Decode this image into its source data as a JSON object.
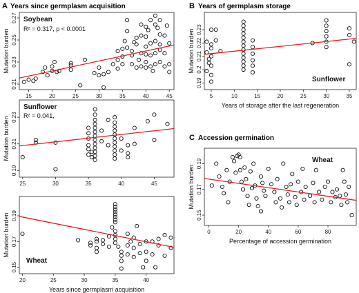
{
  "panel_headings": {
    "A": {
      "letter": "A",
      "title": "Years since germplasm acquisition"
    },
    "B": {
      "letter": "B",
      "title": "Years of germplasm storage"
    },
    "C": {
      "letter": "C",
      "title": "Accession germination"
    }
  },
  "fit_color": "#e41a1c",
  "chart_data": [
    {
      "id": "soybean",
      "type": "scatter",
      "label": "Soybean",
      "stat_r2": "R² = 0.317, p < 0.0001",
      "xlabel": "",
      "ylabel": "Mutation burden",
      "xlim": [
        13,
        46
      ],
      "ylim": [
        0.205,
        0.275
      ],
      "xticks": [
        15,
        20,
        25,
        30,
        35,
        40,
        45
      ],
      "yticks": [
        0.21,
        0.23,
        0.25,
        0.27
      ],
      "fit": {
        "x": [
          13,
          46
        ],
        "y": [
          0.2155,
          0.2455
        ]
      },
      "points": [
        [
          14,
          0.212
        ],
        [
          15,
          0.214
        ],
        [
          16,
          0.213
        ],
        [
          16.5,
          0.215
        ],
        [
          18,
          0.221
        ],
        [
          18.5,
          0.225
        ],
        [
          19,
          0.218
        ],
        [
          20,
          0.222
        ],
        [
          20,
          0.226
        ],
        [
          20.5,
          0.23
        ],
        [
          21,
          0.221
        ],
        [
          21.5,
          0.222
        ],
        [
          24,
          0.223
        ],
        [
          24,
          0.227
        ],
        [
          24,
          0.229
        ],
        [
          26,
          0.209
        ],
        [
          27,
          0.232
        ],
        [
          29,
          0.22
        ],
        [
          30,
          0.225
        ],
        [
          30,
          0.218
        ],
        [
          31,
          0.207
        ],
        [
          31,
          0.219
        ],
        [
          32,
          0.221
        ],
        [
          33,
          0.228
        ],
        [
          34,
          0.232
        ],
        [
          34,
          0.24
        ],
        [
          34,
          0.224
        ],
        [
          35,
          0.235
        ],
        [
          35,
          0.242
        ],
        [
          35,
          0.228
        ],
        [
          35.5,
          0.249
        ],
        [
          36,
          0.268
        ],
        [
          36,
          0.258
        ],
        [
          36,
          0.243
        ],
        [
          37,
          0.236
        ],
        [
          37,
          0.24
        ],
        [
          37,
          0.228
        ],
        [
          37.5,
          0.248
        ],
        [
          38,
          0.225
        ],
        [
          38,
          0.246
        ],
        [
          38,
          0.252
        ],
        [
          38.5,
          0.232
        ],
        [
          39,
          0.264
        ],
        [
          39,
          0.254
        ],
        [
          39,
          0.238
        ],
        [
          39,
          0.226
        ],
        [
          40,
          0.262
        ],
        [
          40,
          0.253
        ],
        [
          40,
          0.244
        ],
        [
          40,
          0.237
        ],
        [
          40,
          0.23
        ],
        [
          40,
          0.225
        ],
        [
          40.5,
          0.259
        ],
        [
          41,
          0.268
        ],
        [
          41,
          0.247
        ],
        [
          41,
          0.236
        ],
        [
          41,
          0.226
        ],
        [
          41.5,
          0.222
        ],
        [
          42,
          0.272
        ],
        [
          42,
          0.264
        ],
        [
          42,
          0.249
        ],
        [
          42,
          0.238
        ],
        [
          42,
          0.228
        ],
        [
          42.5,
          0.261
        ],
        [
          43,
          0.268
        ],
        [
          43,
          0.255
        ],
        [
          43,
          0.246
        ],
        [
          43,
          0.241
        ],
        [
          43,
          0.23
        ],
        [
          44,
          0.254
        ],
        [
          44,
          0.238
        ],
        [
          44,
          0.226
        ],
        [
          44.5,
          0.263
        ],
        [
          45,
          0.228
        ],
        [
          45,
          0.247
        ],
        [
          45,
          0.221
        ]
      ]
    },
    {
      "id": "sunflower_a",
      "type": "scatter",
      "label": "Sunflower",
      "stat_r2": "R² = 0.041,",
      "xlabel": "",
      "ylabel": "Mutation burden",
      "xlim": [
        24.5,
        48
      ],
      "ylim": [
        0.185,
        0.243
      ],
      "xticks": [
        25,
        30,
        35,
        40,
        45
      ],
      "yticks": [
        0.19,
        0.21,
        0.23
      ],
      "fit": {
        "x": [
          24.5,
          48
        ],
        "y": [
          0.2085,
          0.2215
        ]
      },
      "points": [
        [
          25,
          0.2
        ],
        [
          27,
          0.211
        ],
        [
          27,
          0.213
        ],
        [
          30,
          0.211
        ],
        [
          30,
          0.191
        ],
        [
          35,
          0.202
        ],
        [
          35,
          0.206
        ],
        [
          35,
          0.209
        ],
        [
          35,
          0.214
        ],
        [
          35,
          0.218
        ],
        [
          35,
          0.222
        ],
        [
          35.5,
          0.2
        ],
        [
          35.5,
          0.204
        ],
        [
          36,
          0.236
        ],
        [
          36,
          0.232
        ],
        [
          36,
          0.228
        ],
        [
          36,
          0.225
        ],
        [
          36,
          0.222
        ],
        [
          36,
          0.219
        ],
        [
          36,
          0.216
        ],
        [
          36,
          0.213
        ],
        [
          36,
          0.21
        ],
        [
          36,
          0.207
        ],
        [
          36,
          0.204
        ],
        [
          36,
          0.201
        ],
        [
          36,
          0.198
        ],
        [
          37,
          0.212
        ],
        [
          37,
          0.22
        ],
        [
          38,
          0.228
        ],
        [
          38,
          0.209
        ],
        [
          39,
          0.23
        ],
        [
          39,
          0.226
        ],
        [
          39,
          0.223
        ],
        [
          39,
          0.22
        ],
        [
          39,
          0.217
        ],
        [
          39,
          0.214
        ],
        [
          39,
          0.211
        ],
        [
          39,
          0.208
        ],
        [
          39,
          0.205
        ],
        [
          39,
          0.202
        ],
        [
          39,
          0.199
        ],
        [
          40,
          0.214
        ],
        [
          40,
          0.205
        ],
        [
          41,
          0.209
        ],
        [
          41,
          0.203
        ],
        [
          41,
          0.2
        ],
        [
          42,
          0.222
        ],
        [
          42,
          0.21
        ],
        [
          44,
          0.227
        ],
        [
          45,
          0.232
        ],
        [
          45,
          0.213
        ],
        [
          47,
          0.225
        ]
      ]
    },
    {
      "id": "wheat_a",
      "type": "scatter",
      "label": "Wheat",
      "xlabel": "Years since germplasm acquisition",
      "ylabel": "Mutation burden",
      "xlim": [
        19.5,
        44.5
      ],
      "ylim": [
        0.145,
        0.205
      ],
      "xticks": [
        20,
        25,
        30,
        35,
        40
      ],
      "yticks": [
        0.15,
        0.17,
        0.19
      ],
      "fit": {
        "x": [
          19.5,
          44.5
        ],
        "y": [
          0.1895,
          0.1655
        ]
      },
      "points": [
        [
          20,
          0.176
        ],
        [
          29,
          0.171
        ],
        [
          31,
          0.167
        ],
        [
          31,
          0.169
        ],
        [
          32,
          0.17
        ],
        [
          32,
          0.165
        ],
        [
          32,
          0.172
        ],
        [
          32,
          0.162
        ],
        [
          33,
          0.168
        ],
        [
          33,
          0.171
        ],
        [
          34,
          0.174
        ],
        [
          34,
          0.166
        ],
        [
          34.5,
          0.181
        ],
        [
          35,
          0.199
        ],
        [
          35,
          0.197
        ],
        [
          35,
          0.195
        ],
        [
          35,
          0.193
        ],
        [
          35,
          0.191
        ],
        [
          35,
          0.189
        ],
        [
          35,
          0.187
        ],
        [
          35,
          0.185
        ],
        [
          35,
          0.178
        ],
        [
          35,
          0.175
        ],
        [
          35,
          0.172
        ],
        [
          35,
          0.169
        ],
        [
          35.5,
          0.166
        ],
        [
          36,
          0.162
        ],
        [
          36,
          0.159
        ],
        [
          36,
          0.155
        ],
        [
          36,
          0.149
        ],
        [
          37,
          0.176
        ],
        [
          37,
          0.167
        ],
        [
          37,
          0.16
        ],
        [
          37.5,
          0.17
        ],
        [
          38,
          0.158
        ],
        [
          38,
          0.165
        ],
        [
          38,
          0.173
        ],
        [
          38.5,
          0.182
        ],
        [
          39,
          0.161
        ],
        [
          39,
          0.168
        ],
        [
          39.5,
          0.15
        ],
        [
          40,
          0.17
        ],
        [
          40,
          0.162
        ],
        [
          40,
          0.155
        ],
        [
          41,
          0.17
        ],
        [
          41,
          0.16
        ],
        [
          41.5,
          0.15
        ],
        [
          42,
          0.167
        ],
        [
          42,
          0.172
        ],
        [
          43,
          0.175
        ],
        [
          43,
          0.159
        ],
        [
          44,
          0.173
        ],
        [
          44,
          0.165
        ]
      ]
    },
    {
      "id": "sunflower_b",
      "type": "scatter",
      "label": "Sunflower",
      "xlabel": "Years of storage after the last regeneration",
      "ylabel": "Mutation burden",
      "xlim": [
        3.5,
        36.5
      ],
      "ylim": [
        0.185,
        0.243
      ],
      "xticks": [
        5,
        10,
        15,
        20,
        25,
        30,
        35
      ],
      "yticks": [
        0.19,
        0.2,
        0.21,
        0.22,
        0.23
      ],
      "fit": {
        "x": [
          3.5,
          36.5
        ],
        "y": [
          0.2115,
          0.2235
        ]
      },
      "points": [
        [
          4,
          0.199
        ],
        [
          4,
          0.213
        ],
        [
          4,
          0.221
        ],
        [
          4.5,
          0.208
        ],
        [
          4.5,
          0.205
        ],
        [
          5,
          0.23
        ],
        [
          5,
          0.219
        ],
        [
          5,
          0.216
        ],
        [
          5,
          0.21
        ],
        [
          5,
          0.203
        ],
        [
          5,
          0.196
        ],
        [
          5,
          0.191
        ],
        [
          6,
          0.23
        ],
        [
          6,
          0.222
        ],
        [
          7,
          0.214
        ],
        [
          12,
          0.236
        ],
        [
          12,
          0.233
        ],
        [
          12,
          0.23
        ],
        [
          12,
          0.227
        ],
        [
          12,
          0.224
        ],
        [
          12,
          0.221
        ],
        [
          12,
          0.218
        ],
        [
          12,
          0.215
        ],
        [
          12,
          0.212
        ],
        [
          12,
          0.209
        ],
        [
          12,
          0.206
        ],
        [
          12,
          0.203
        ],
        [
          12,
          0.2
        ],
        [
          14,
          0.222
        ],
        [
          14,
          0.217
        ],
        [
          14,
          0.212
        ],
        [
          14,
          0.207
        ],
        [
          14,
          0.203
        ],
        [
          14,
          0.198
        ],
        [
          27,
          0.22
        ],
        [
          30,
          0.237
        ],
        [
          30,
          0.233
        ],
        [
          30,
          0.229
        ],
        [
          30,
          0.225
        ],
        [
          30,
          0.221
        ],
        [
          30,
          0.217
        ],
        [
          35,
          0.231
        ],
        [
          35,
          0.226
        ],
        [
          35,
          0.204
        ],
        [
          36,
          0.221
        ]
      ]
    },
    {
      "id": "wheat_c",
      "type": "scatter",
      "label": "Wheat",
      "xlabel": "Percentage of accession germination",
      "ylabel": "Mutation burden",
      "xlim": [
        -3,
        99
      ],
      "ylim": [
        0.142,
        0.202
      ],
      "xticks": [
        0,
        20,
        40,
        60,
        80
      ],
      "yticks": [
        0.15,
        0.17,
        0.19
      ],
      "fit": {
        "x": [
          -3,
          99
        ],
        "y": [
          0.1785,
          0.1615
        ]
      },
      "points": [
        [
          2,
          0.173
        ],
        [
          5,
          0.19
        ],
        [
          7,
          0.18
        ],
        [
          9,
          0.172
        ],
        [
          10,
          0.167
        ],
        [
          12,
          0.185
        ],
        [
          13,
          0.16
        ],
        [
          14,
          0.176
        ],
        [
          16,
          0.195
        ],
        [
          17,
          0.192
        ],
        [
          18,
          0.183
        ],
        [
          19,
          0.196
        ],
        [
          20,
          0.197
        ],
        [
          21,
          0.185
        ],
        [
          21,
          0.195
        ],
        [
          22,
          0.176
        ],
        [
          23,
          0.17
        ],
        [
          24,
          0.187
        ],
        [
          25,
          0.178
        ],
        [
          26,
          0.165
        ],
        [
          27,
          0.158
        ],
        [
          28,
          0.184
        ],
        [
          29,
          0.171
        ],
        [
          30,
          0.19
        ],
        [
          31,
          0.173
        ],
        [
          32,
          0.163
        ],
        [
          33,
          0.157
        ],
        [
          35,
          0.18
        ],
        [
          35,
          0.153
        ],
        [
          36,
          0.175
        ],
        [
          37,
          0.169
        ],
        [
          38,
          0.165
        ],
        [
          40,
          0.186
        ],
        [
          42,
          0.174
        ],
        [
          44,
          0.168
        ],
        [
          45,
          0.16
        ],
        [
          46,
          0.178
        ],
        [
          48,
          0.163
        ],
        [
          49,
          0.156
        ],
        [
          50,
          0.19
        ],
        [
          52,
          0.172
        ],
        [
          53,
          0.166
        ],
        [
          54,
          0.16
        ],
        [
          55,
          0.174
        ],
        [
          56,
          0.182
        ],
        [
          58,
          0.164
        ],
        [
          59,
          0.158
        ],
        [
          60,
          0.176
        ],
        [
          62,
          0.168
        ],
        [
          63,
          0.186
        ],
        [
          64,
          0.162
        ],
        [
          65,
          0.172
        ],
        [
          68,
          0.165
        ],
        [
          70,
          0.175
        ],
        [
          71,
          0.16
        ],
        [
          72,
          0.185
        ],
        [
          74,
          0.168
        ],
        [
          76,
          0.162
        ],
        [
          78,
          0.172
        ],
        [
          80,
          0.176
        ],
        [
          82,
          0.16
        ],
        [
          83,
          0.168
        ],
        [
          85,
          0.164
        ],
        [
          86,
          0.17
        ],
        [
          88,
          0.165
        ],
        [
          89,
          0.158
        ],
        [
          90,
          0.185
        ],
        [
          91,
          0.176
        ],
        [
          92,
          0.166
        ],
        [
          93,
          0.16
        ],
        [
          94,
          0.172
        ],
        [
          96,
          0.15
        ]
      ]
    }
  ]
}
